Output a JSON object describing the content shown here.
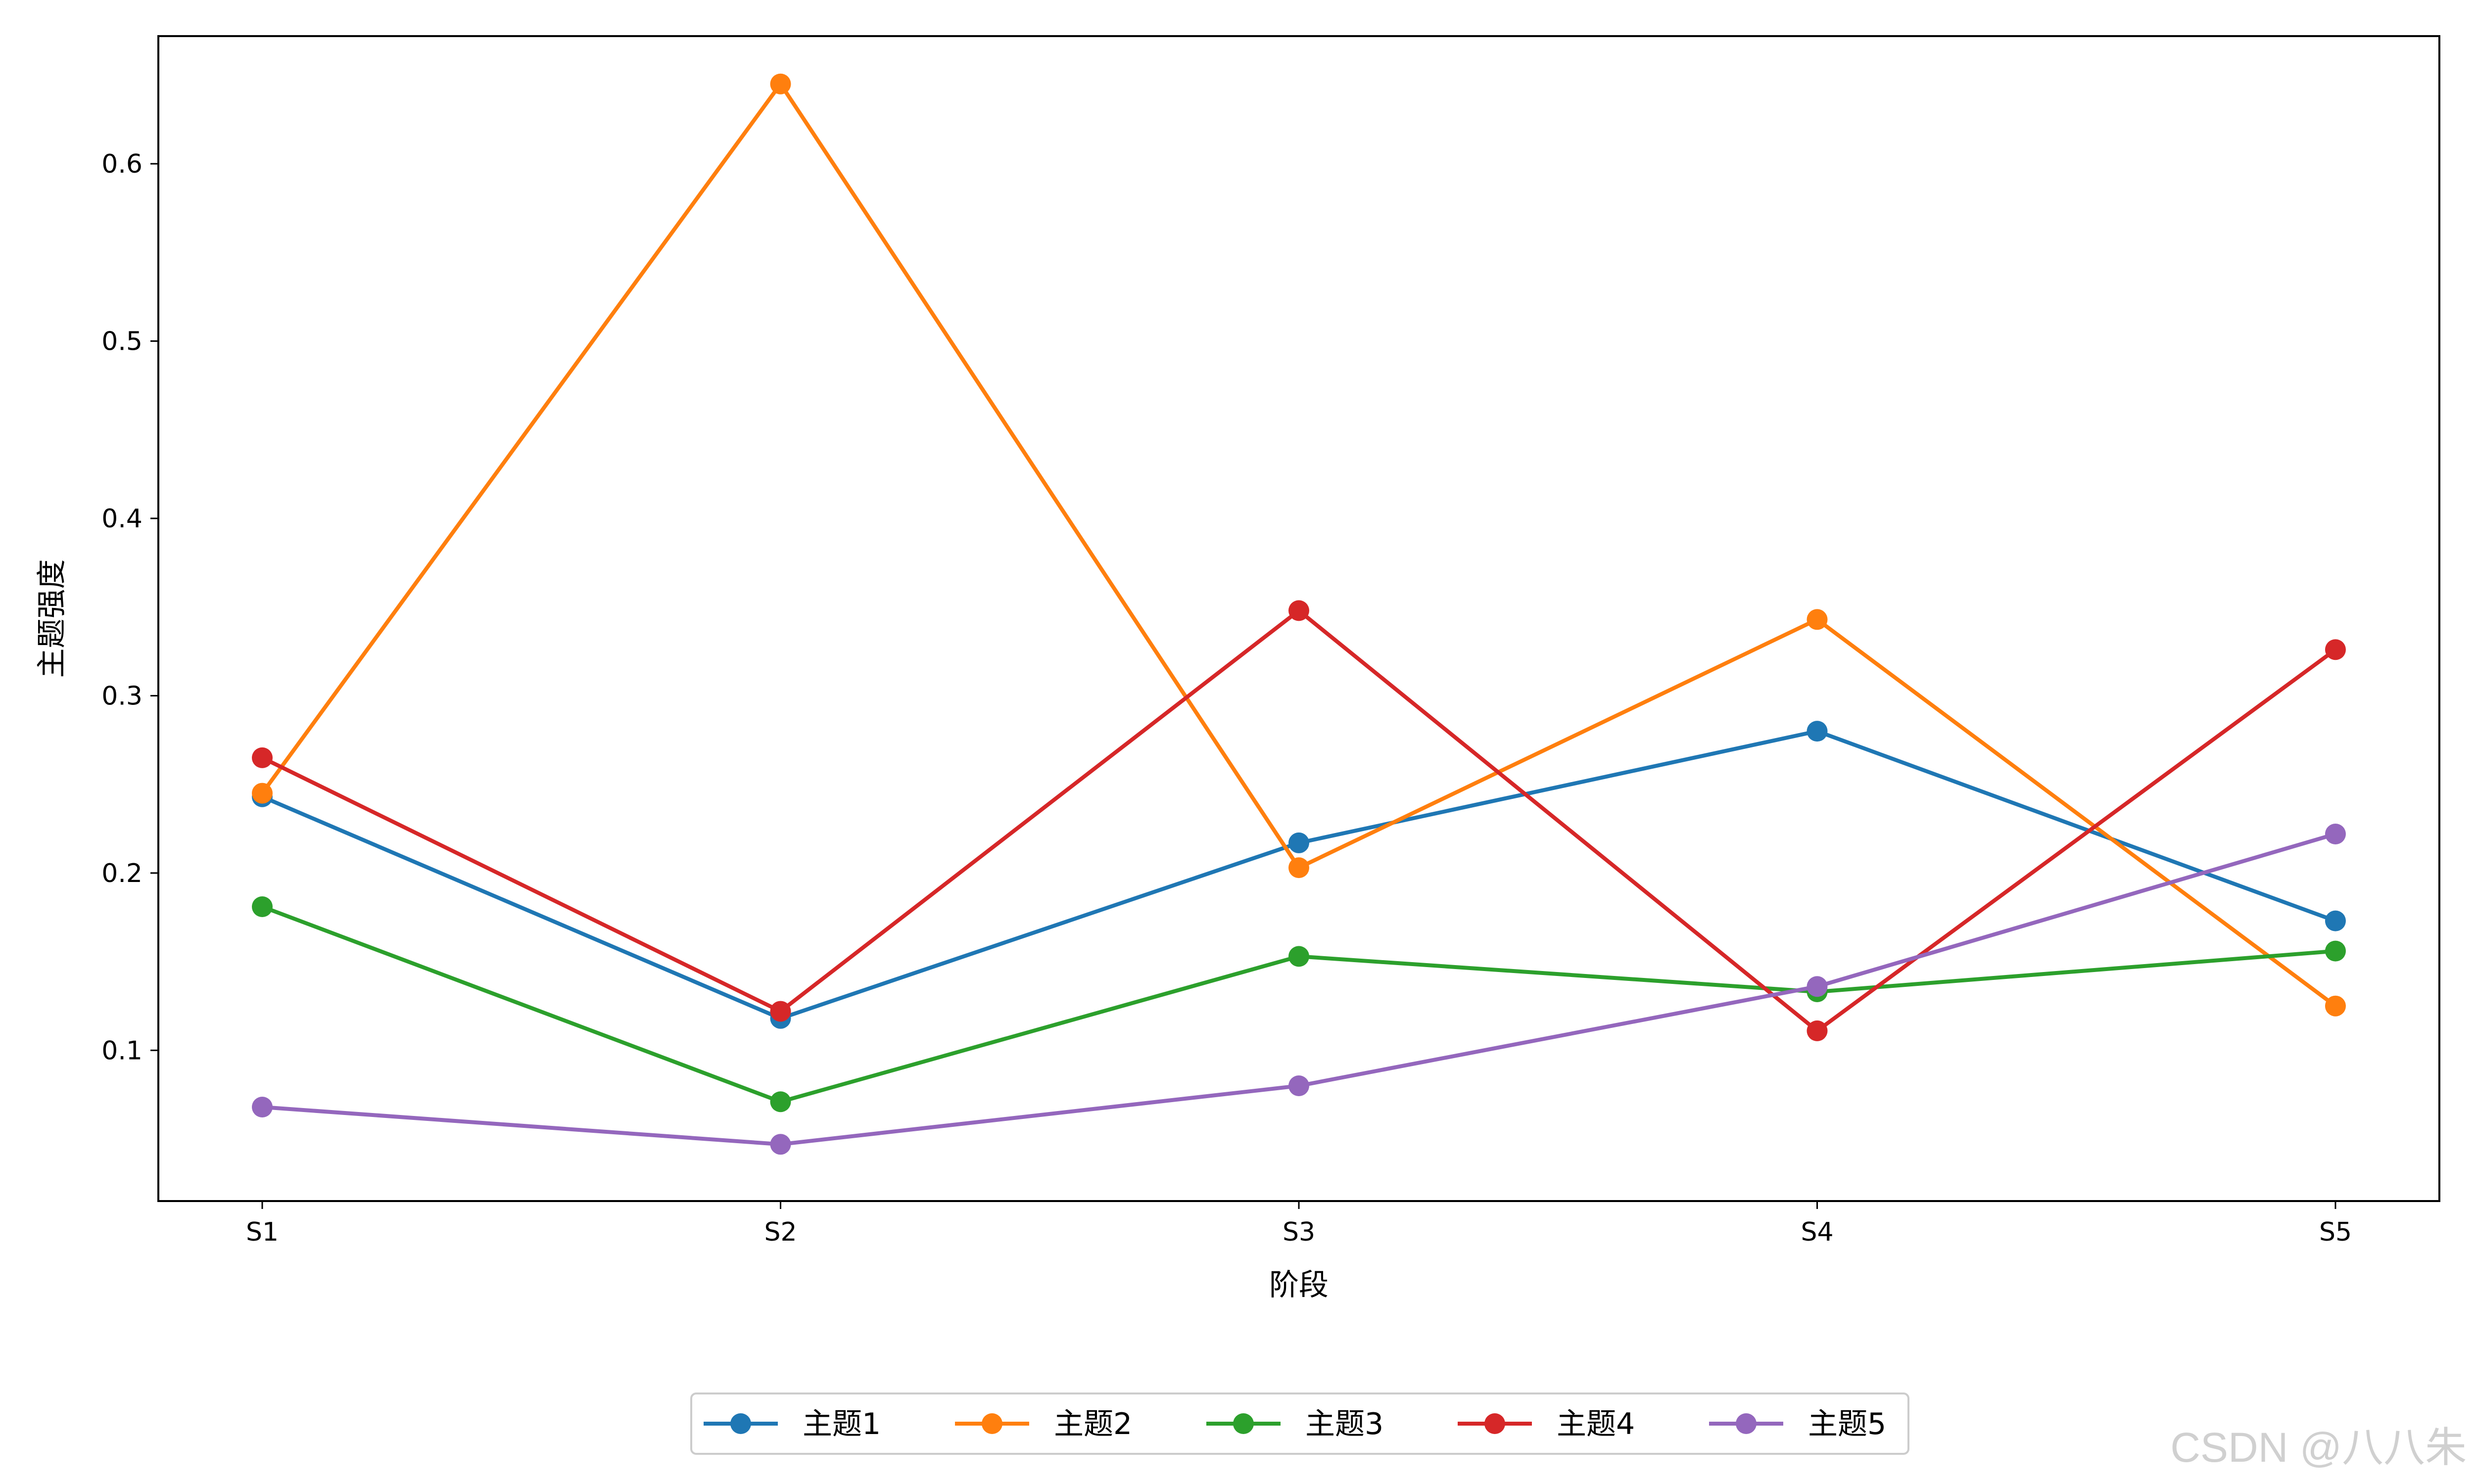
{
  "chart_data": {
    "type": "line",
    "title": "",
    "xlabel": "阶段",
    "ylabel": "主题强度",
    "categories": [
      "S1",
      "S2",
      "S3",
      "S4",
      "S5"
    ],
    "y_ticks": [
      "0.1",
      "0.2",
      "0.3",
      "0.4",
      "0.5",
      "0.6"
    ],
    "y_tick_values": [
      0.1,
      0.2,
      0.3,
      0.4,
      0.5,
      0.6
    ],
    "ylim": [
      0.015,
      0.672
    ],
    "grid": false,
    "legend_position": "bottom-center",
    "series": [
      {
        "name": "主题1",
        "color": "#1f77b4",
        "values": [
          0.243,
          0.118,
          0.217,
          0.28,
          0.173
        ]
      },
      {
        "name": "主题2",
        "color": "#ff7f0e",
        "values": [
          0.245,
          0.645,
          0.203,
          0.343,
          0.125
        ]
      },
      {
        "name": "主题3",
        "color": "#2ca02c",
        "values": [
          0.181,
          0.071,
          0.153,
          0.133,
          0.156
        ]
      },
      {
        "name": "主题4",
        "color": "#d62728",
        "values": [
          0.265,
          0.122,
          0.348,
          0.111,
          0.326
        ]
      },
      {
        "name": "主题5",
        "color": "#9467bd",
        "values": [
          0.068,
          0.047,
          0.08,
          0.136,
          0.222
        ]
      }
    ]
  },
  "watermark": "CSDN @八八朱"
}
